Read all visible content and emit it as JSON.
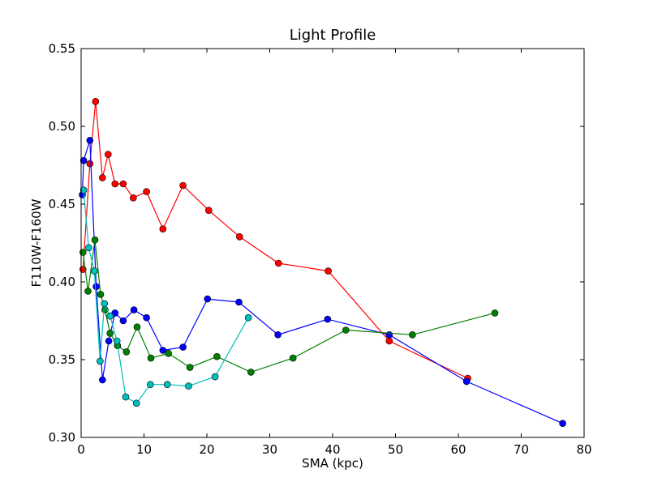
{
  "chart_data": {
    "type": "line",
    "title": "Light Profile",
    "xlabel": "SMA (kpc)",
    "ylabel": "F110W-F160W",
    "xlim": [
      0,
      80
    ],
    "ylim": [
      0.3,
      0.55
    ],
    "xticks": [
      "0",
      "10",
      "20",
      "30",
      "40",
      "50",
      "60",
      "70",
      "80"
    ],
    "yticks": [
      "0.30",
      "0.35",
      "0.40",
      "0.45",
      "0.50",
      "0.55"
    ],
    "grid": false,
    "series": [
      {
        "color": "#ff0000",
        "marker": "circle",
        "x": [
          0.3,
          1.4,
          2.3,
          3.4,
          4.3,
          5.4,
          6.7,
          8.3,
          10.4,
          13.0,
          16.2,
          20.3,
          25.2,
          31.4,
          39.3,
          49.0,
          61.5
        ],
        "y": [
          0.408,
          0.476,
          0.516,
          0.467,
          0.482,
          0.463,
          0.463,
          0.454,
          0.458,
          0.434,
          0.462,
          0.446,
          0.429,
          0.412,
          0.407,
          0.362,
          0.338
        ]
      },
      {
        "color": "#0000ff",
        "marker": "circle",
        "x": [
          0.2,
          0.4,
          1.4,
          2.4,
          3.4,
          4.4,
          5.4,
          6.7,
          8.4,
          10.4,
          13.0,
          16.2,
          20.1,
          25.1,
          31.3,
          39.2,
          49.0,
          61.3,
          76.6
        ],
        "y": [
          0.456,
          0.478,
          0.491,
          0.397,
          0.337,
          0.362,
          0.38,
          0.375,
          0.382,
          0.377,
          0.356,
          0.358,
          0.389,
          0.387,
          0.366,
          0.376,
          0.366,
          0.336,
          0.309
        ]
      },
      {
        "color": "#008000",
        "marker": "circle",
        "x": [
          0.3,
          1.1,
          2.2,
          3.1,
          3.8,
          4.6,
          5.8,
          7.2,
          8.9,
          11.1,
          13.9,
          17.3,
          21.6,
          27.0,
          33.7,
          42.1,
          52.7,
          65.8
        ],
        "y": [
          0.419,
          0.394,
          0.427,
          0.392,
          0.382,
          0.367,
          0.359,
          0.355,
          0.371,
          0.351,
          0.354,
          0.345,
          0.352,
          0.342,
          0.351,
          0.369,
          0.366,
          0.38
        ]
      },
      {
        "color": "#00bfbf",
        "marker": "circle",
        "x": [
          0.4,
          1.2,
          2.1,
          3.0,
          3.7,
          4.6,
          5.7,
          7.1,
          8.8,
          11.0,
          13.7,
          17.1,
          21.3,
          26.6
        ],
        "y": [
          0.459,
          0.422,
          0.407,
          0.349,
          0.386,
          0.378,
          0.362,
          0.326,
          0.322,
          0.334,
          0.334,
          0.333,
          0.339,
          0.377
        ]
      }
    ]
  }
}
